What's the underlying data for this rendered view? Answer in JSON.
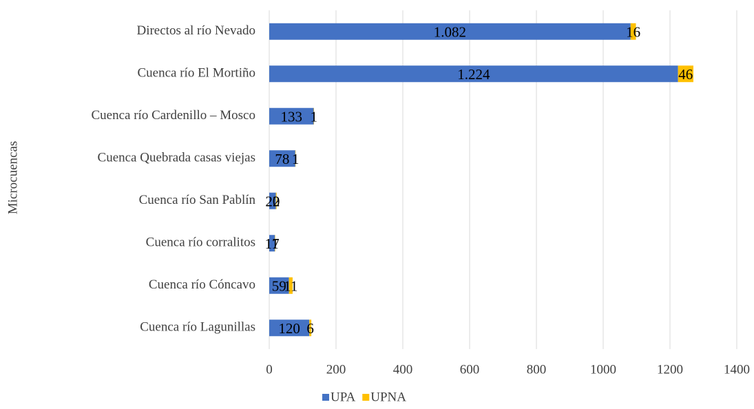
{
  "chart_data": {
    "type": "bar",
    "orientation": "horizontal",
    "stacked": true,
    "y_axis_label": "Microcuencas",
    "categories": [
      "Directos al río Nevado",
      "Cuenca río El Mortiño",
      "Cuenca río Cardenillo – Mosco",
      "Cuenca Quebrada casas viejas",
      "Cuenca río San Pablín",
      "Cuenca río corralitos",
      "Cuenca río Cóncavo",
      "Cuenca río Lagunillas"
    ],
    "series": [
      {
        "name": "UPA",
        "color": "#4472c4",
        "values": [
          1082,
          1224,
          133,
          78,
          20,
          17,
          59,
          120
        ],
        "value_labels": [
          "1.082",
          "1.224",
          "133",
          "78",
          "20",
          "17",
          "59",
          "120"
        ]
      },
      {
        "name": "UPNA",
        "color": "#ffc000",
        "values": [
          16,
          46,
          1,
          1,
          2,
          1,
          11,
          6
        ]
      }
    ],
    "xlim": [
      0,
      1400
    ],
    "xticks": [
      0,
      200,
      400,
      600,
      800,
      1000,
      1200,
      1400
    ],
    "grid": true,
    "legend": "bottom"
  }
}
